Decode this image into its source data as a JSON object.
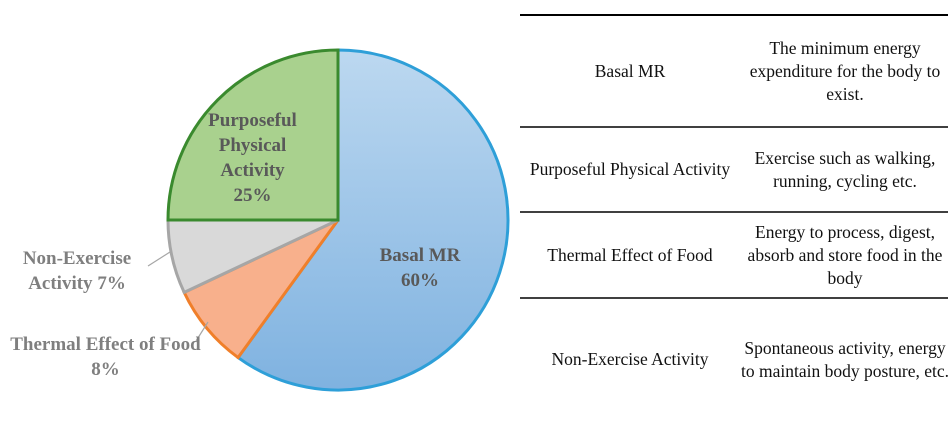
{
  "chart_data": {
    "type": "pie",
    "categories": [
      "Basal MR",
      "Thermal Effect of Food",
      "Non-Exercise Activity",
      "Purposeful Physical Activity"
    ],
    "values": [
      60,
      8,
      7,
      25
    ],
    "value_labels": [
      "60%",
      "8%",
      "7%",
      "25%"
    ],
    "colors": [
      "#9fc5e8",
      "#f8b08c",
      "#d9d9d9",
      "#a9d18e"
    ],
    "edge_colors": [
      "#2e9fd8",
      "#f07f2a",
      "#a6a6a6",
      "#3a8a2e"
    ]
  },
  "table": {
    "rows": [
      [
        "Basal MR",
        "The minimum energy expenditure for the body to exist."
      ],
      [
        "Purposeful Physical Activity",
        "Exercise such as walking, running, cycling etc."
      ],
      [
        "Thermal Effect of Food",
        "Energy to process, digest, absorb and store food in the body"
      ],
      [
        "Non-Exercise Activity",
        "Spontaneous activity, energy to maintain body posture, etc."
      ]
    ]
  }
}
